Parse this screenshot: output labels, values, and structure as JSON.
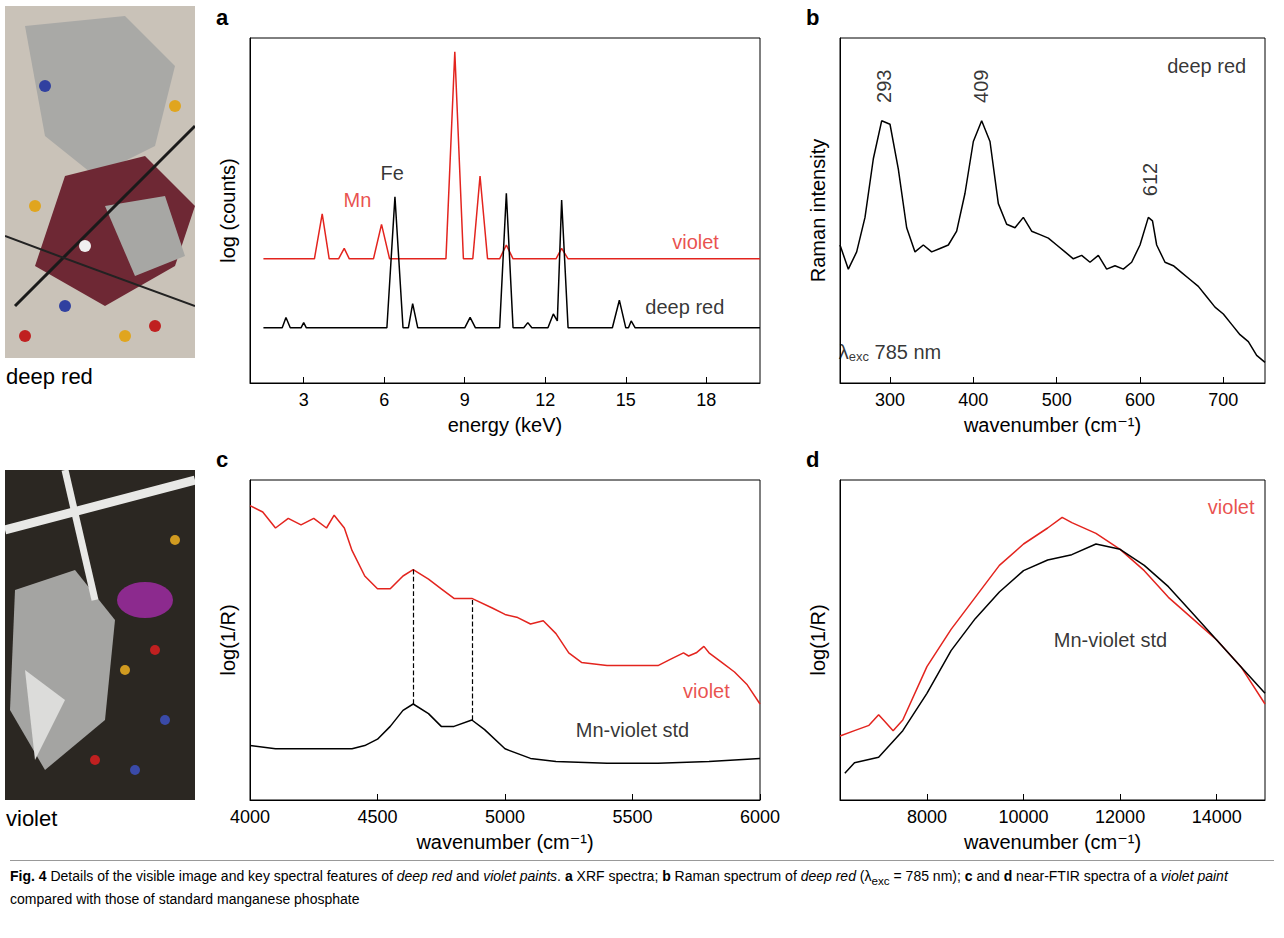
{
  "figure": {
    "photos": [
      {
        "label": "deep red"
      },
      {
        "label": "violet"
      }
    ],
    "caption": [
      {
        "text": "Fig. 4",
        "style": "bold"
      },
      {
        "text": "  Details of the visible image and key spectral features of ",
        "style": "plain"
      },
      {
        "text": "deep red",
        "style": "italic"
      },
      {
        "text": " and ",
        "style": "plain"
      },
      {
        "text": "violet paints",
        "style": "italic"
      },
      {
        "text": ". ",
        "style": "plain"
      },
      {
        "text": "a",
        "style": "bold"
      },
      {
        "text": " XRF spectra; ",
        "style": "plain"
      },
      {
        "text": "b",
        "style": "bold"
      },
      {
        "text": " Raman spectrum of ",
        "style": "plain"
      },
      {
        "text": "deep red",
        "style": "italic"
      },
      {
        "text": " (λ",
        "style": "plain"
      },
      {
        "text": "exc",
        "style": "sub"
      },
      {
        "text": " = 785 nm); ",
        "style": "plain"
      },
      {
        "text": "c",
        "style": "bold"
      },
      {
        "text": " and ",
        "style": "plain"
      },
      {
        "text": "d",
        "style": "bold"
      },
      {
        "text": " near-FTIR spectra of a ",
        "style": "plain"
      },
      {
        "text": "violet paint",
        "style": "italic"
      },
      {
        "text": " compared with those of standard manganese phosphate",
        "style": "plain"
      }
    ]
  },
  "chart_data": [
    {
      "type": "line",
      "panel": "a",
      "xlabel": "energy (keV)",
      "ylabel": "log (counts)",
      "xlim": [
        1,
        20
      ],
      "xticks": [
        3,
        6,
        9,
        12,
        15,
        18
      ],
      "ylim": [
        0,
        100
      ],
      "tick_labels": "x",
      "grid": false,
      "series": [
        {
          "name": "violet",
          "color": "#e3241e",
          "label_at": [
            17.6,
            41
          ],
          "x": [
            1.5,
            3.4,
            3.69,
            3.95,
            4.3,
            4.51,
            4.7,
            5.6,
            5.9,
            6.2,
            8.3,
            8.63,
            8.95,
            9.3,
            9.57,
            9.85,
            10.3,
            10.55,
            10.8,
            12.4,
            12.61,
            12.85,
            20
          ],
          "values": [
            36,
            36,
            49,
            36,
            36,
            39,
            36,
            36,
            46,
            36,
            36,
            96,
            36,
            36,
            60,
            36,
            36,
            40,
            36,
            36,
            39,
            36,
            36
          ]
        },
        {
          "name": "deep red",
          "color": "#000000",
          "label_at": [
            17.2,
            22
          ],
          "x": [
            1.5,
            2.2,
            2.34,
            2.5,
            2.9,
            3.0,
            3.1,
            4.0,
            6.1,
            6.4,
            6.7,
            6.9,
            7.06,
            7.25,
            9.0,
            9.2,
            9.4,
            10.3,
            10.55,
            10.8,
            11.2,
            11.35,
            11.5,
            12.1,
            12.3,
            12.45,
            12.61,
            12.85,
            14.5,
            14.76,
            15.0,
            15.1,
            15.2,
            15.35,
            20
          ],
          "values": [
            16,
            16,
            19,
            16,
            16,
            17.5,
            16,
            16,
            16,
            54,
            16,
            16,
            23,
            16,
            16,
            19,
            16,
            16,
            55,
            16,
            16,
            17.5,
            16,
            16,
            20,
            18,
            53,
            16,
            16,
            24,
            16,
            16,
            18,
            16,
            16
          ]
        }
      ],
      "annotations": [
        {
          "text": "Fe",
          "x": 6.3,
          "y": 61,
          "color": "#000000"
        },
        {
          "text": "Mn",
          "x": 5.0,
          "y": 53,
          "color": "#e3241e"
        }
      ]
    },
    {
      "type": "line",
      "panel": "b",
      "xlabel": "wavenumber (cm⁻¹)",
      "ylabel": "Raman intensity",
      "xlim": [
        240,
        750
      ],
      "xticks": [
        300,
        400,
        500,
        600,
        700
      ],
      "ylim": [
        0,
        100
      ],
      "tick_labels": "x",
      "grid": false,
      "series": [
        {
          "name": "deep red",
          "color": "#000000",
          "label_at": [
            680,
            92
          ],
          "x": [
            240,
            250,
            260,
            270,
            280,
            290,
            300,
            310,
            320,
            330,
            340,
            350,
            360,
            370,
            380,
            390,
            400,
            410,
            420,
            430,
            440,
            450,
            460,
            470,
            480,
            490,
            500,
            510,
            520,
            530,
            540,
            550,
            560,
            570,
            580,
            590,
            600,
            610,
            615,
            620,
            630,
            640,
            650,
            660,
            670,
            680,
            690,
            700,
            710,
            720,
            730,
            740,
            750
          ],
          "values": [
            40,
            33,
            38,
            48,
            65,
            76,
            75,
            62,
            45,
            38,
            40,
            38,
            39,
            40,
            44,
            55,
            70,
            76,
            70,
            52,
            46,
            45,
            48,
            44,
            43,
            42,
            40,
            38,
            36,
            37,
            35,
            37,
            33,
            34,
            33,
            35,
            40,
            48,
            47,
            40,
            35,
            34,
            32,
            30,
            28,
            25,
            22,
            20,
            17,
            14,
            12,
            8,
            6
          ]
        }
      ],
      "peak_labels": [
        {
          "value": 293,
          "y": 86
        },
        {
          "value": 409,
          "y": 86
        },
        {
          "value": 612,
          "y": 59
        }
      ],
      "excitation": {
        "symbol": "λ",
        "subscript": "exc",
        "text": "785 nm",
        "x": 300,
        "y": 9
      }
    },
    {
      "type": "line",
      "panel": "c",
      "xlabel": "wavenumber (cm⁻¹)",
      "ylabel": "log(1/R)",
      "xlim": [
        4000,
        6000
      ],
      "xticks": [
        4000,
        4500,
        5000,
        5500,
        6000
      ],
      "ylim": [
        0,
        100
      ],
      "tick_labels": "x",
      "grid": false,
      "series": [
        {
          "name": "violet",
          "color": "#e3241e",
          "label_at": [
            5790,
            34
          ],
          "x": [
            4000,
            4050,
            4100,
            4150,
            4200,
            4250,
            4300,
            4330,
            4370,
            4400,
            4450,
            4500,
            4550,
            4600,
            4640,
            4700,
            4750,
            4800,
            4870,
            4950,
            5000,
            5050,
            5100,
            5150,
            5200,
            5250,
            5300,
            5400,
            5500,
            5600,
            5650,
            5700,
            5720,
            5750,
            5780,
            5800,
            5850,
            5900,
            5950,
            6000
          ],
          "values": [
            92,
            90,
            85,
            88,
            86,
            88,
            85,
            89,
            85,
            78,
            70,
            66,
            66,
            70,
            72,
            69,
            66,
            63,
            63,
            60,
            58,
            57,
            55,
            56,
            52,
            46,
            43,
            42,
            42,
            42,
            44,
            46,
            45,
            46,
            48,
            46,
            43,
            40,
            36,
            30
          ]
        },
        {
          "name": "Mn-violet std",
          "color": "#000000",
          "label_at": [
            5500,
            22
          ],
          "x": [
            4000,
            4100,
            4200,
            4300,
            4400,
            4450,
            4500,
            4550,
            4600,
            4640,
            4700,
            4750,
            4800,
            4870,
            4920,
            5000,
            5100,
            5200,
            5400,
            5600,
            5800,
            6000
          ],
          "values": [
            17,
            16,
            16,
            16,
            16,
            17,
            19,
            23,
            28,
            30,
            27,
            23,
            23,
            25,
            22,
            16,
            13,
            12,
            11.5,
            11.5,
            12,
            13
          ]
        }
      ],
      "reference_lines": [
        {
          "x": 4640,
          "y": [
            30,
            72
          ]
        },
        {
          "x": 4870,
          "y": [
            25,
            63
          ]
        }
      ]
    },
    {
      "type": "line",
      "panel": "d",
      "xlabel": "wavenumber (cm⁻¹)",
      "ylabel": "log(1/R)",
      "xlim": [
        6200,
        15000
      ],
      "xticks": [
        8000,
        10000,
        12000,
        14000
      ],
      "ylim": [
        0,
        60
      ],
      "tick_labels": "x",
      "grid": false,
      "series": [
        {
          "name": "violet",
          "color": "#e3241e",
          "label_at": [
            14300,
            55
          ],
          "x": [
            6200,
            6500,
            6800,
            7000,
            7100,
            7300,
            7500,
            8000,
            8500,
            9000,
            9500,
            10000,
            10500,
            10800,
            11000,
            11500,
            12000,
            12500,
            13000,
            13500,
            14000,
            14500,
            15000
          ],
          "values": [
            12,
            13,
            14,
            16,
            15,
            13,
            15,
            25,
            32,
            38,
            44,
            48,
            51,
            53,
            52,
            50,
            47,
            43,
            38,
            34,
            30,
            25,
            18
          ]
        },
        {
          "name": "Mn-violet std",
          "color": "#000000",
          "label_at": [
            11800,
            30
          ],
          "x": [
            6300,
            6500,
            7000,
            7500,
            8000,
            8500,
            9000,
            9500,
            10000,
            10500,
            11000,
            11500,
            12000,
            12500,
            13000,
            13500,
            14000,
            14500,
            15000
          ],
          "values": [
            5,
            7,
            8,
            13,
            20,
            28,
            34,
            39,
            43,
            45,
            46,
            48,
            47,
            44,
            40,
            35,
            30,
            25,
            20
          ]
        }
      ]
    }
  ]
}
